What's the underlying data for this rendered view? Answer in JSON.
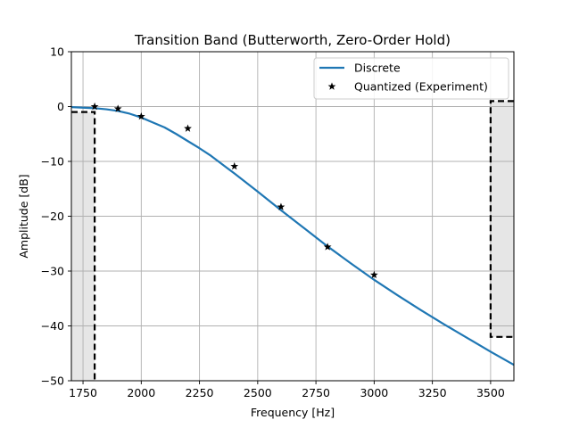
{
  "chart_data": {
    "type": "line",
    "title": "Transition Band (Butterworth, Zero-Order Hold)",
    "xlabel": "Frequency [Hz]",
    "ylabel": "Amplitude [dB]",
    "xlim": [
      1700,
      3600
    ],
    "ylim": [
      -50,
      10
    ],
    "xticks": [
      1750,
      2000,
      2250,
      2500,
      2750,
      3000,
      3250,
      3500
    ],
    "yticks": [
      -50,
      -40,
      -30,
      -20,
      -10,
      0,
      10
    ],
    "grid": true,
    "legend_position": "top-right",
    "series": [
      {
        "name": "Discrete",
        "style": "line",
        "color": "#1f77b4",
        "x": [
          1700,
          1750,
          1800,
          1850,
          1900,
          1950,
          2000,
          2050,
          2100,
          2150,
          2200,
          2250,
          2300,
          2400,
          2500,
          2600,
          2700,
          2800,
          2900,
          3000,
          3100,
          3200,
          3300,
          3400,
          3500,
          3600
        ],
        "y": [
          -0.1,
          -0.2,
          -0.3,
          -0.5,
          -0.8,
          -1.3,
          -2.0,
          -2.9,
          -3.8,
          -5.0,
          -6.3,
          -7.6,
          -9.0,
          -12.2,
          -15.5,
          -18.9,
          -22.2,
          -25.5,
          -28.6,
          -31.6,
          -34.4,
          -37.1,
          -39.7,
          -42.2,
          -44.7,
          -47.1
        ]
      },
      {
        "name": "Quantized (Experiment)",
        "style": "marker",
        "marker": "star",
        "color": "#000000",
        "x": [
          1800,
          1900,
          2000,
          2200,
          2400,
          2600,
          2800,
          3000
        ],
        "y": [
          0.0,
          -0.4,
          -1.8,
          -4.0,
          -10.9,
          -18.3,
          -25.6,
          -30.7
        ]
      }
    ],
    "regions": [
      {
        "x0": 1700,
        "x1": 1800,
        "y_top": -1,
        "fill": "#e6e6e6"
      },
      {
        "x0": 3500,
        "x1": 3600,
        "y_top": 1,
        "y_bottom": -42,
        "fill": "#e6e6e6"
      }
    ]
  }
}
